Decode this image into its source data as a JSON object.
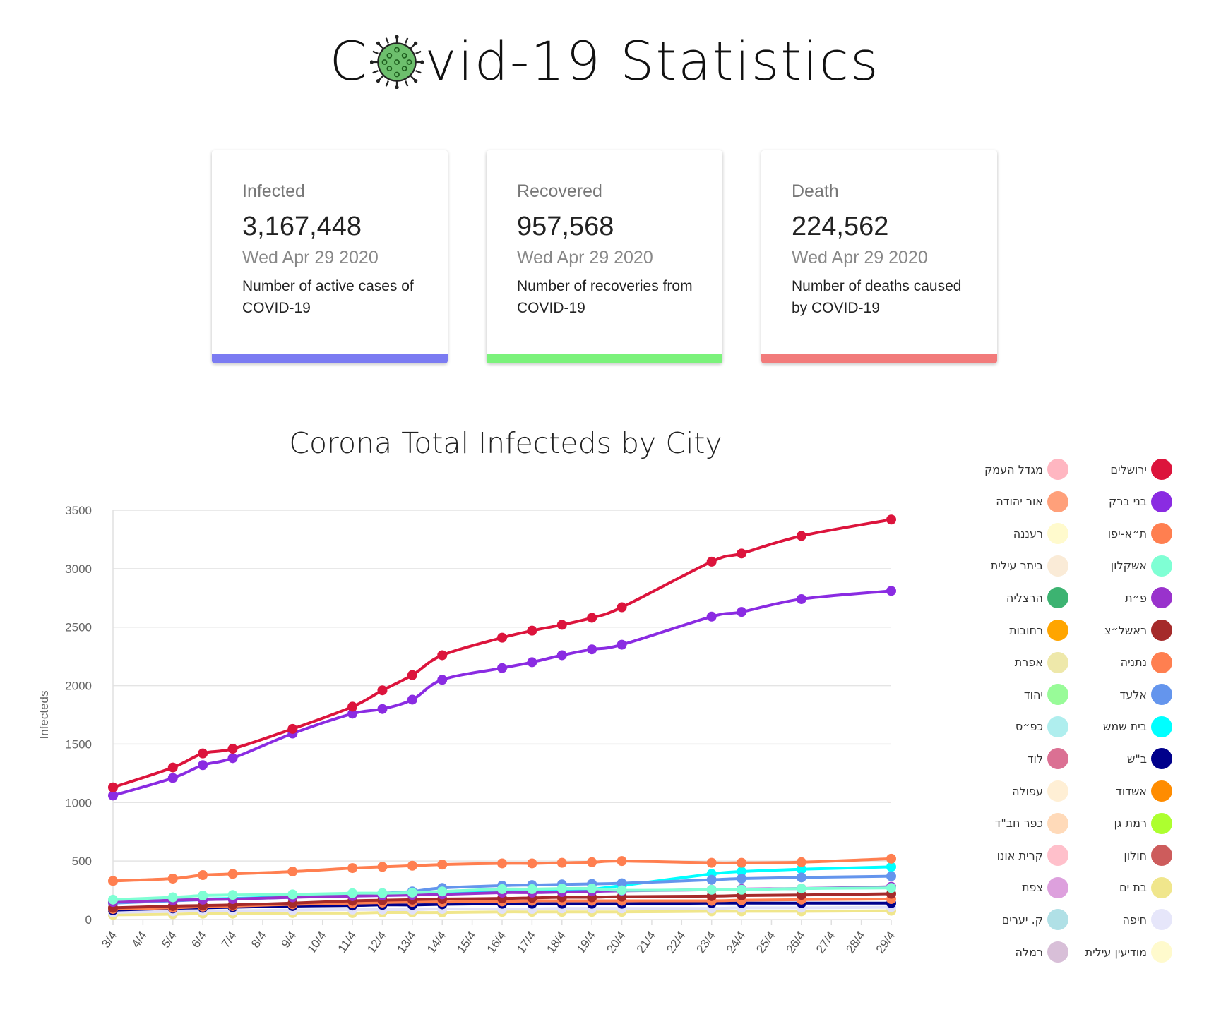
{
  "header": {
    "title_pre": "C",
    "title_post": "vid-19 Statistics",
    "virus_icon": "virus-icon",
    "virus_color": "#6dbf6d"
  },
  "cards": [
    {
      "label": "Infected",
      "value": "3,167,448",
      "date": "Wed Apr 29 2020",
      "desc": "Number of active cases of COVID-19",
      "color": "#7b7bf2"
    },
    {
      "label": "Recovered",
      "value": "957,568",
      "date": "Wed Apr 29 2020",
      "desc": "Number of recoveries from COVID-19",
      "color": "#7bf27b"
    },
    {
      "label": "Death",
      "value": "224,562",
      "date": "Wed Apr 29 2020",
      "desc": "Number of deaths caused by COVID-19",
      "color": "#f27b7b"
    }
  ],
  "chart_data": {
    "type": "line",
    "title": "Corona Total Infecteds by City",
    "xlabel": "",
    "ylabel": "Infecteds",
    "ylim": [
      0,
      3500
    ],
    "yticks": [
      0,
      500,
      1000,
      1500,
      2000,
      2500,
      3000,
      3500
    ],
    "grid": true,
    "categories": [
      "3/4",
      "4/4",
      "5/4",
      "6/4",
      "7/4",
      "8/4",
      "9/4",
      "10/4",
      "11/4",
      "12/4",
      "13/4",
      "14/4",
      "15/4",
      "16/4",
      "17/4",
      "18/4",
      "19/4",
      "20/4",
      "21/4",
      "22/4",
      "23/4",
      "24/4",
      "25/4",
      "26/4",
      "27/4",
      "28/4",
      "29/4"
    ],
    "series": [
      {
        "name": "ירושלים",
        "color": "#dc143c",
        "points": [
          [
            0,
            1130
          ],
          [
            2,
            1300
          ],
          [
            3,
            1420
          ],
          [
            4,
            1460
          ],
          [
            6,
            1630
          ],
          [
            8,
            1820
          ],
          [
            9,
            1960
          ],
          [
            10,
            2090
          ],
          [
            11,
            2260
          ],
          [
            13,
            2410
          ],
          [
            14,
            2470
          ],
          [
            15,
            2520
          ],
          [
            16,
            2580
          ],
          [
            17,
            2670
          ],
          [
            20,
            3060
          ],
          [
            21,
            3130
          ],
          [
            23,
            3280
          ],
          [
            26,
            3420
          ]
        ]
      },
      {
        "name": "בני ברק",
        "color": "#8a2be2",
        "points": [
          [
            0,
            1060
          ],
          [
            2,
            1210
          ],
          [
            3,
            1320
          ],
          [
            4,
            1380
          ],
          [
            6,
            1590
          ],
          [
            8,
            1760
          ],
          [
            9,
            1800
          ],
          [
            10,
            1880
          ],
          [
            11,
            2050
          ],
          [
            13,
            2150
          ],
          [
            14,
            2200
          ],
          [
            15,
            2260
          ],
          [
            16,
            2310
          ],
          [
            17,
            2350
          ],
          [
            20,
            2590
          ],
          [
            21,
            2630
          ],
          [
            23,
            2740
          ],
          [
            26,
            2810
          ]
        ]
      },
      {
        "name": "ת״א-יפו",
        "color": "#ff7f50",
        "points": [
          [
            0,
            330
          ],
          [
            2,
            350
          ],
          [
            3,
            380
          ],
          [
            4,
            390
          ],
          [
            6,
            410
          ],
          [
            8,
            440
          ],
          [
            9,
            450
          ],
          [
            10,
            460
          ],
          [
            11,
            470
          ],
          [
            13,
            480
          ],
          [
            14,
            480
          ],
          [
            15,
            485
          ],
          [
            16,
            490
          ],
          [
            17,
            500
          ],
          [
            20,
            485
          ],
          [
            21,
            485
          ],
          [
            23,
            490
          ],
          [
            26,
            520
          ]
        ]
      },
      {
        "name": "אשקלון",
        "color": "#7fffd4",
        "points": [
          [
            0,
            170
          ],
          [
            2,
            190
          ],
          [
            3,
            205
          ],
          [
            4,
            210
          ],
          [
            6,
            215
          ],
          [
            8,
            225
          ],
          [
            9,
            225
          ],
          [
            10,
            230
          ],
          [
            11,
            240
          ],
          [
            13,
            260
          ],
          [
            14,
            260
          ],
          [
            15,
            265
          ],
          [
            16,
            265
          ],
          [
            17,
            250
          ],
          [
            20,
            255
          ],
          [
            21,
            255
          ],
          [
            23,
            265
          ],
          [
            26,
            270
          ]
        ]
      },
      {
        "name": "פ״ת",
        "color": "#9932cc",
        "points": [
          [
            0,
            150
          ],
          [
            2,
            165
          ],
          [
            3,
            170
          ],
          [
            4,
            175
          ],
          [
            6,
            190
          ],
          [
            8,
            200
          ],
          [
            9,
            205
          ],
          [
            10,
            210
          ],
          [
            11,
            215
          ],
          [
            13,
            230
          ],
          [
            14,
            230
          ],
          [
            15,
            235
          ],
          [
            16,
            240
          ],
          [
            17,
            245
          ],
          [
            20,
            255
          ],
          [
            21,
            260
          ],
          [
            23,
            265
          ],
          [
            26,
            280
          ]
        ]
      },
      {
        "name": "ראשל״צ",
        "color": "#a52a2a",
        "points": [
          [
            0,
            100
          ],
          [
            2,
            115
          ],
          [
            3,
            120
          ],
          [
            4,
            125
          ],
          [
            6,
            140
          ],
          [
            8,
            160
          ],
          [
            9,
            165
          ],
          [
            10,
            170
          ],
          [
            11,
            175
          ],
          [
            13,
            180
          ],
          [
            14,
            185
          ],
          [
            15,
            190
          ],
          [
            16,
            190
          ],
          [
            17,
            195
          ],
          [
            20,
            200
          ],
          [
            21,
            205
          ],
          [
            23,
            210
          ],
          [
            26,
            220
          ]
        ]
      },
      {
        "name": "נתניה",
        "color": "#ff7f50",
        "points": [
          [
            0,
            90
          ],
          [
            2,
            100
          ],
          [
            3,
            110
          ],
          [
            4,
            115
          ],
          [
            6,
            130
          ],
          [
            8,
            140
          ],
          [
            9,
            145
          ],
          [
            10,
            150
          ],
          [
            11,
            150
          ],
          [
            13,
            155
          ],
          [
            14,
            160
          ],
          [
            15,
            160
          ],
          [
            16,
            160
          ],
          [
            17,
            160
          ],
          [
            20,
            160
          ],
          [
            21,
            165
          ],
          [
            23,
            170
          ],
          [
            26,
            175
          ]
        ]
      },
      {
        "name": "אלעד",
        "color": "#6495ed",
        "points": [
          [
            0,
            140
          ],
          [
            2,
            160
          ],
          [
            3,
            170
          ],
          [
            4,
            175
          ],
          [
            6,
            190
          ],
          [
            8,
            210
          ],
          [
            9,
            225
          ],
          [
            10,
            240
          ],
          [
            11,
            270
          ],
          [
            13,
            290
          ],
          [
            14,
            295
          ],
          [
            15,
            300
          ],
          [
            16,
            305
          ],
          [
            17,
            310
          ],
          [
            20,
            340
          ],
          [
            21,
            350
          ],
          [
            23,
            360
          ],
          [
            26,
            370
          ]
        ]
      },
      {
        "name": "בית שמש",
        "color": "#00ffff",
        "points": [
          [
            0,
            150
          ],
          [
            2,
            165
          ],
          [
            3,
            175
          ],
          [
            4,
            180
          ],
          [
            6,
            195
          ],
          [
            8,
            205
          ],
          [
            9,
            210
          ],
          [
            10,
            215
          ],
          [
            11,
            225
          ],
          [
            13,
            240
          ],
          [
            14,
            245
          ],
          [
            15,
            250
          ],
          [
            16,
            260
          ],
          [
            17,
            290
          ],
          [
            20,
            390
          ],
          [
            21,
            410
          ],
          [
            23,
            430
          ],
          [
            26,
            450
          ]
        ]
      },
      {
        "name": "ב\"ש",
        "color": "#00008b",
        "points": [
          [
            0,
            80
          ],
          [
            2,
            95
          ],
          [
            3,
            100
          ],
          [
            4,
            105
          ],
          [
            6,
            115
          ],
          [
            8,
            120
          ],
          [
            9,
            125
          ],
          [
            10,
            125
          ],
          [
            11,
            130
          ],
          [
            13,
            135
          ],
          [
            14,
            135
          ],
          [
            15,
            135
          ],
          [
            16,
            135
          ],
          [
            17,
            135
          ],
          [
            20,
            140
          ],
          [
            21,
            140
          ],
          [
            23,
            140
          ],
          [
            26,
            140
          ]
        ]
      },
      {
        "name": "חיפה",
        "color": "#e0e0f8",
        "points": [
          [
            0,
            60
          ],
          [
            2,
            70
          ],
          [
            3,
            75
          ],
          [
            4,
            75
          ],
          [
            6,
            80
          ],
          [
            8,
            85
          ],
          [
            9,
            85
          ],
          [
            10,
            85
          ],
          [
            11,
            90
          ],
          [
            13,
            90
          ],
          [
            14,
            90
          ],
          [
            15,
            95
          ],
          [
            16,
            95
          ],
          [
            17,
            95
          ],
          [
            20,
            95
          ],
          [
            21,
            100
          ],
          [
            23,
            100
          ],
          [
            26,
            105
          ]
        ]
      },
      {
        "name": "בת ים",
        "color": "#f0e68c",
        "points": [
          [
            0,
            40
          ],
          [
            2,
            45
          ],
          [
            3,
            50
          ],
          [
            4,
            50
          ],
          [
            6,
            55
          ],
          [
            8,
            55
          ],
          [
            9,
            60
          ],
          [
            10,
            60
          ],
          [
            11,
            60
          ],
          [
            13,
            65
          ],
          [
            14,
            65
          ],
          [
            15,
            65
          ],
          [
            16,
            65
          ],
          [
            17,
            65
          ],
          [
            20,
            70
          ],
          [
            21,
            70
          ],
          [
            23,
            70
          ],
          [
            26,
            75
          ]
        ]
      }
    ],
    "legend": [
      {
        "name": "ירושלים",
        "color": "#dc143c"
      },
      {
        "name": "מגדל העמק",
        "color": "#ffb6c1"
      },
      {
        "name": "בני ברק",
        "color": "#8a2be2"
      },
      {
        "name": "אור יהודה",
        "color": "#ffa07a"
      },
      {
        "name": "ת״א-יפו",
        "color": "#ff7f50"
      },
      {
        "name": "רעננה",
        "color": "#fffacd"
      },
      {
        "name": "אשקלון",
        "color": "#7fffd4"
      },
      {
        "name": "ביתר עילית",
        "color": "#faebd7"
      },
      {
        "name": "פ״ת",
        "color": "#9932cc"
      },
      {
        "name": "הרצליה",
        "color": "#3cb371"
      },
      {
        "name": "ראשל״צ",
        "color": "#a52a2a"
      },
      {
        "name": "רחובות",
        "color": "#ffa500"
      },
      {
        "name": "נתניה",
        "color": "#ff7f50"
      },
      {
        "name": "אפרת",
        "color": "#eee8aa"
      },
      {
        "name": "אלעד",
        "color": "#6495ed"
      },
      {
        "name": "יהוד",
        "color": "#98fb98"
      },
      {
        "name": "בית שמש",
        "color": "#00ffff"
      },
      {
        "name": "כפ״ס",
        "color": "#afeeee"
      },
      {
        "name": "ב\"ש",
        "color": "#00008b"
      },
      {
        "name": "לוד",
        "color": "#db7093"
      },
      {
        "name": "אשדוד",
        "color": "#ff8c00"
      },
      {
        "name": "עפולה",
        "color": "#ffefd5"
      },
      {
        "name": "רמת גן",
        "color": "#adff2f"
      },
      {
        "name": "כפר חב\"ד",
        "color": "#ffdab9"
      },
      {
        "name": "חולון",
        "color": "#cd5c5c"
      },
      {
        "name": "קרית אונו",
        "color": "#ffc0cb"
      },
      {
        "name": "בת ים",
        "color": "#f0e68c"
      },
      {
        "name": "צפת",
        "color": "#dda0dd"
      },
      {
        "name": "חיפה",
        "color": "#e6e6fa"
      },
      {
        "name": "ק. יערים",
        "color": "#b0e0e6"
      },
      {
        "name": "מודיעין עילית",
        "color": "#fffacd"
      },
      {
        "name": "רמלה",
        "color": "#d8bfd8"
      }
    ]
  }
}
